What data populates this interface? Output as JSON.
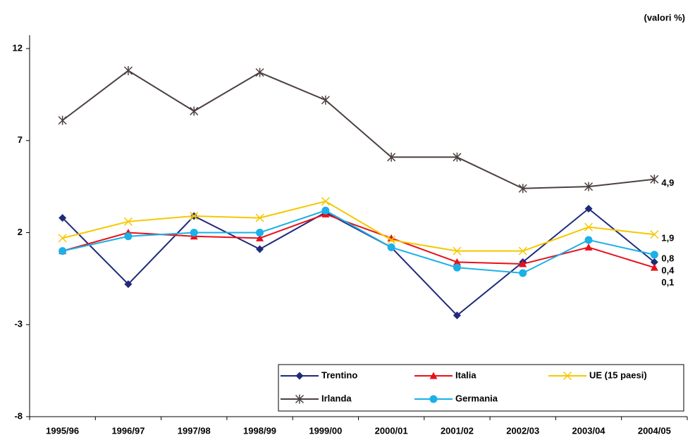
{
  "chart_data": {
    "type": "line",
    "unit_label": "(valori %)",
    "categories": [
      "1995/96",
      "1996/97",
      "1997/98",
      "1998/99",
      "1999/00",
      "2000/01",
      "2001/02",
      "2002/03",
      "2003/04",
      "2004/05"
    ],
    "ylim": [
      -8,
      12
    ],
    "yticks": [
      -8,
      -3,
      2,
      7,
      12
    ],
    "grid": false,
    "series": [
      {
        "name": "Trentino",
        "color": "#1f2a7a",
        "marker": "diamond",
        "values": [
          2.8,
          -0.8,
          2.9,
          1.1,
          3.1,
          1.2,
          -2.5,
          0.4,
          3.3,
          0.4
        ],
        "value_labels": [
          null,
          null,
          null,
          null,
          null,
          null,
          null,
          null,
          null,
          "0,4"
        ]
      },
      {
        "name": "Italia",
        "color": "#e8101a",
        "marker": "triangle",
        "values": [
          1.0,
          2.0,
          1.8,
          1.7,
          3.0,
          1.7,
          0.4,
          0.3,
          1.2,
          0.1
        ],
        "value_labels": [
          null,
          null,
          null,
          null,
          null,
          null,
          null,
          null,
          null,
          "0,1"
        ]
      },
      {
        "name": "UE (15 paesi)",
        "color": "#f5c800",
        "marker": "x",
        "values": [
          1.7,
          2.6,
          2.9,
          2.8,
          3.7,
          1.6,
          1.0,
          1.0,
          2.3,
          1.9
        ],
        "value_labels": [
          null,
          null,
          null,
          null,
          null,
          null,
          null,
          null,
          null,
          "1,9"
        ]
      },
      {
        "name": "Irlanda",
        "color": "#4d4040",
        "marker": "star",
        "values": [
          8.1,
          10.8,
          8.6,
          10.7,
          9.2,
          6.1,
          6.1,
          4.4,
          4.5,
          4.9
        ],
        "value_labels": [
          null,
          null,
          null,
          null,
          null,
          null,
          null,
          null,
          null,
          "4,9"
        ]
      },
      {
        "name": "Germania",
        "color": "#1ab0e8",
        "marker": "circle",
        "values": [
          1.0,
          1.8,
          2.0,
          2.0,
          3.2,
          1.2,
          0.1,
          -0.2,
          1.6,
          0.8
        ],
        "value_labels": [
          null,
          null,
          null,
          null,
          null,
          null,
          null,
          null,
          null,
          "0,8"
        ]
      }
    ]
  }
}
